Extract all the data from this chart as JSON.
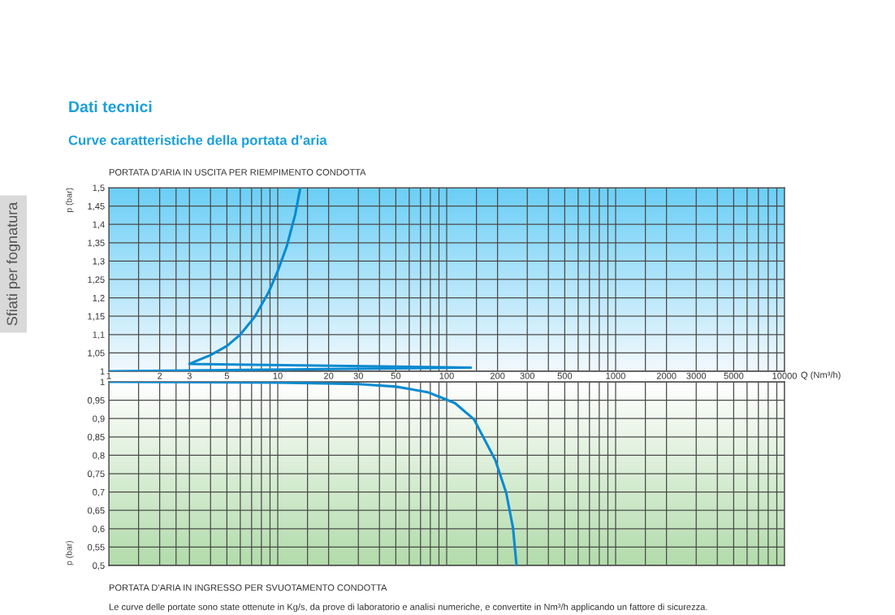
{
  "chart_data": [
    {
      "type": "line",
      "title": "PORTATA D’ARIA IN USCITA PER RIEMPIMENTO CONDOTTA",
      "annotations": [
        "Sfiati per fognatura",
        "Dati tecnici",
        "Curve caratteristiche della portata d’aria"
      ],
      "ylabel": "p (bar)",
      "xlabel": "Q (Nm³/h)",
      "log": "x",
      "grid": true,
      "line_style": "solid",
      "xlim": [
        1,
        10000
      ],
      "xticks": [
        1,
        {
          "value": 1.5,
          "label": null
        },
        2,
        {
          "value": 2.5,
          "label": null
        },
        3,
        {
          "value": 4,
          "label": null
        },
        5,
        {
          "value": 6,
          "label": null
        },
        {
          "value": 7,
          "label": null
        },
        {
          "value": 8,
          "label": null
        },
        {
          "value": 9,
          "label": null
        },
        10,
        {
          "value": 15,
          "label": null
        },
        20,
        30,
        {
          "value": 40,
          "label": null
        },
        50,
        {
          "value": 60,
          "label": null
        },
        {
          "value": 70,
          "label": null
        },
        {
          "value": 80,
          "label": null
        },
        {
          "value": 90,
          "label": null
        },
        100,
        {
          "value": 150,
          "label": null
        },
        200,
        300,
        {
          "value": 400,
          "label": null
        },
        500,
        {
          "value": 600,
          "label": null
        },
        {
          "value": 700,
          "label": null
        },
        {
          "value": 800,
          "label": null
        },
        {
          "value": 900,
          "label": null
        },
        1000,
        {
          "value": 1500,
          "label": null
        },
        2000,
        3000,
        {
          "value": 4000,
          "label": null
        },
        5000,
        {
          "value": 6000,
          "label": null
        },
        {
          "value": 7000,
          "label": null
        },
        {
          "value": 8000,
          "label": null
        },
        {
          "value": 9000,
          "label": null
        },
        10000
      ],
      "ylim": [
        1,
        1.5
      ],
      "yticks": [
        1,
        {
          "value": 1.05,
          "label": "1,05"
        },
        {
          "value": 1.1,
          "label": "1,1"
        },
        {
          "value": 1.15,
          "label": "1,15"
        },
        {
          "value": 1.2,
          "label": "1,2"
        },
        {
          "value": 1.25,
          "label": "1,25"
        },
        {
          "value": 1.3,
          "label": "1,3"
        },
        {
          "value": 1.35,
          "label": "1,35"
        },
        {
          "value": 1.4,
          "label": "1,4"
        },
        {
          "value": 1.45,
          "label": "1,45"
        },
        {
          "value": 1.5,
          "label": "1,5"
        }
      ],
      "series": [
        {
          "color": "#0a8ad0",
          "x": [
            1,
            139,
            3,
            4,
            5,
            6,
            7.3,
            8.8,
            10,
            11.3,
            12.7,
            13.6
          ],
          "values": [
            1.0,
            1.01,
            1.02,
            1.044,
            1.069,
            1.1,
            1.148,
            1.214,
            1.273,
            1.34,
            1.428,
            1.5
          ]
        }
      ]
    },
    {
      "type": "line",
      "title": "PORTATA D’ARIA IN INGRESSO PER SVUOTAMENTO CONDOTTA",
      "annotations": [
        "Le curve delle portate sono state ottenute in Kg/s, da prove di laboratorio e analisi numeriche, e convertite in Nm³/h applicando un fattore di sicurezza."
      ],
      "ylabel": "p (bar)",
      "log": "x",
      "grid": true,
      "line_style": "solid",
      "tick_labels": "y",
      "xlim": [
        1,
        10000
      ],
      "xticks": [
        1,
        1.5,
        2,
        2.5,
        3,
        4,
        5,
        6,
        7,
        8,
        9,
        10,
        15,
        20,
        30,
        40,
        50,
        60,
        70,
        80,
        90,
        100,
        150,
        200,
        300,
        400,
        500,
        600,
        700,
        800,
        900,
        1000,
        1500,
        2000,
        3000,
        4000,
        5000,
        6000,
        7000,
        8000,
        9000,
        10000
      ],
      "ylim": [
        0.5,
        1
      ],
      "yticks": [
        {
          "value": 0.5,
          "label": "0,5"
        },
        {
          "value": 0.55,
          "label": "0,55"
        },
        {
          "value": 0.6,
          "label": "0,6"
        },
        {
          "value": 0.65,
          "label": "0,65"
        },
        {
          "value": 0.7,
          "label": "0,7"
        },
        {
          "value": 0.75,
          "label": "0,75"
        },
        {
          "value": 0.8,
          "label": "0,8"
        },
        {
          "value": 0.85,
          "label": "0,85"
        },
        {
          "value": 0.9,
          "label": "0,9"
        },
        {
          "value": 0.95,
          "label": "0,95"
        },
        1
      ],
      "series": [
        {
          "color": "#0a8ad0",
          "x": [
            1,
            10,
            30,
            50,
            77,
            98,
            112,
            145,
            194,
            225,
            247,
            259
          ],
          "values": [
            1.0,
            0.998,
            0.994,
            0.987,
            0.972,
            0.953,
            0.942,
            0.898,
            0.787,
            0.698,
            0.602,
            0.5
          ]
        }
      ]
    }
  ]
}
